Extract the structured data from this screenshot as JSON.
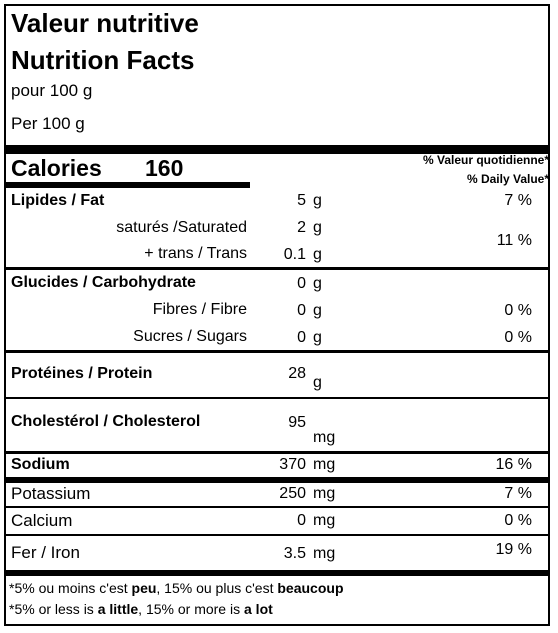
{
  "header": {
    "title_fr": "Valeur nutritive",
    "title_en": "Nutrition Facts",
    "serving_fr": "pour 100 g",
    "serving_en": "Per 100 g"
  },
  "calories": {
    "label": "Calories",
    "value": "160"
  },
  "dv_header": {
    "fr": "% Valeur quotidienne*",
    "en": "% Daily Value*"
  },
  "rows": {
    "fat": {
      "label": "Lipides / Fat",
      "amount": "5",
      "unit": "g",
      "dv": "7 %"
    },
    "saturated": {
      "label": "saturés /Saturated",
      "amount": "2",
      "unit": "g"
    },
    "trans": {
      "label": "+ trans / Trans",
      "amount": "0.1",
      "unit": "g"
    },
    "sat_trans_dv": "11 %",
    "carb": {
      "label": "Glucides / Carbohydrate",
      "amount": "0",
      "unit": "g"
    },
    "fibre": {
      "label": "Fibres / Fibre",
      "amount": "0",
      "unit": "g",
      "dv": "0 %"
    },
    "sugars": {
      "label": "Sucres / Sugars",
      "amount": "0",
      "unit": "g",
      "dv": "0 %"
    },
    "protein": {
      "label": "Protéines / Protein",
      "amount": "28",
      "unit": "g"
    },
    "cholesterol": {
      "label": "Cholestérol / Cholesterol",
      "amount": "95",
      "unit": "mg"
    },
    "sodium": {
      "label": "Sodium",
      "amount": "370",
      "unit": "mg",
      "dv": "16 %"
    },
    "potassium": {
      "label": "Potassium",
      "amount": "250",
      "unit": "mg",
      "dv": "7 %"
    },
    "calcium": {
      "label": "Calcium",
      "amount": "0",
      "unit": "mg",
      "dv": "0 %"
    },
    "iron": {
      "label": "Fer / Iron",
      "amount": "3.5",
      "unit": "mg",
      "dv": "19 %"
    }
  },
  "footnote": {
    "fr_pre": "*5% ou moins c'est ",
    "fr_b1": "peu",
    "fr_mid": ", 15% ou plus c'est ",
    "fr_b2": "beaucoup",
    "en_pre": "*5% or less is ",
    "en_b1": "a little",
    "en_mid": ", 15% or more is ",
    "en_b2": "a lot"
  }
}
